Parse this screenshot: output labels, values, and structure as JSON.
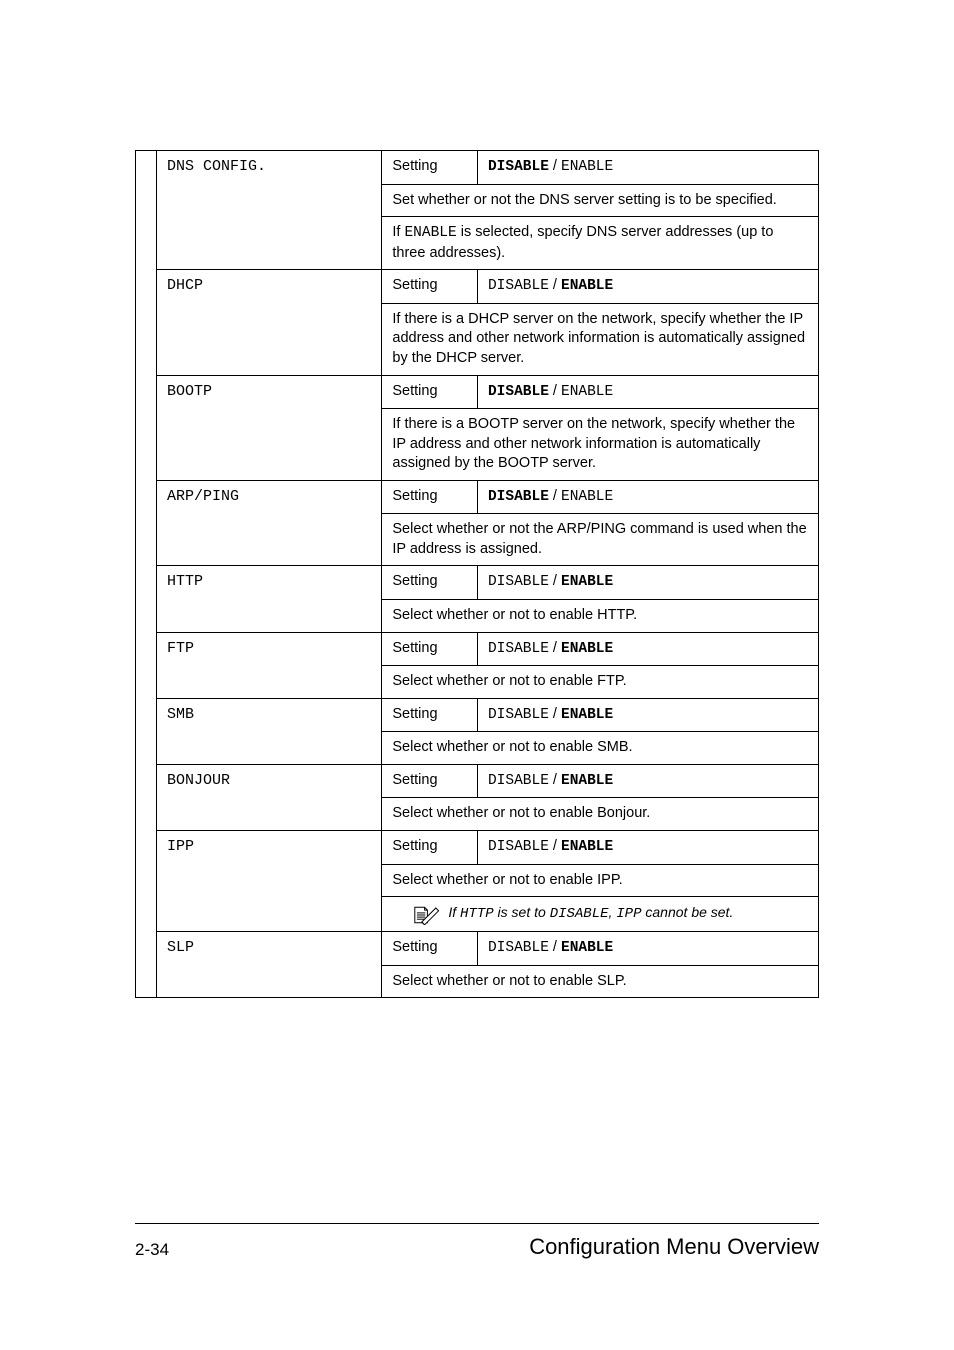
{
  "rows": [
    {
      "name": "DNS CONFIG.",
      "setting_label": "Setting",
      "value_html": "<span class='bold-mono'>DISABLE</span> / <span class='mono'>ENABLE</span>",
      "descs": [
        "Set whether or not the DNS server setting is to be specified.",
        "If <span class='mono'>ENABLE</span> is selected, specify DNS server addresses (up to three addresses)."
      ]
    },
    {
      "name": "DHCP",
      "setting_label": "Setting",
      "value_html": "<span class='mono'>DISABLE</span> / <span class='bold-mono'>ENABLE</span>",
      "descs": [
        "If there is a DHCP server on the network, specify whether the IP address and other network information is automatically assigned by the DHCP server."
      ]
    },
    {
      "name": "BOOTP",
      "setting_label": "Setting",
      "value_html": "<span class='bold-mono'>DISABLE</span> / <span class='mono'>ENABLE</span>",
      "descs": [
        "If there is a BOOTP server on the network, specify whether the IP address and other network information is automatically assigned by the BOOTP server."
      ]
    },
    {
      "name": "ARP/PING",
      "setting_label": "Setting",
      "value_html": "<span class='bold-mono'>DISABLE</span> / <span class='mono'>ENABLE</span>",
      "descs": [
        "Select whether or not the ARP/PING command is used when the IP address is assigned."
      ]
    },
    {
      "name": "HTTP",
      "setting_label": "Setting",
      "value_html": "<span class='mono'>DISABLE</span> / <span class='bold-mono'>ENABLE</span>",
      "descs": [
        "Select whether or not to enable HTTP."
      ]
    },
    {
      "name": "FTP",
      "setting_label": "Setting",
      "value_html": "<span class='mono'>DISABLE</span> / <span class='bold-mono'>ENABLE</span>",
      "descs": [
        "Select whether or not to enable FTP."
      ]
    },
    {
      "name": "SMB",
      "setting_label": "Setting",
      "value_html": "<span class='mono'>DISABLE</span> / <span class='bold-mono'>ENABLE</span>",
      "descs": [
        "Select whether or not to enable SMB."
      ]
    },
    {
      "name": "BONJOUR",
      "setting_label": "Setting",
      "value_html": "<span class='mono'>DISABLE</span> / <span class='bold-mono'>ENABLE</span>",
      "descs": [
        "Select whether or not to enable Bonjour."
      ]
    },
    {
      "name": "IPP",
      "setting_label": "Setting",
      "value_html": "<span class='mono'>DISABLE</span> / <span class='bold-mono'>ENABLE</span>",
      "descs": [
        "Select whether or not to enable IPP."
      ],
      "note": "If <span class='mono'>HTTP</span> is set to <span class='mono'>DISABLE</span>, <span class='mono'>IPP</span> cannot be set."
    },
    {
      "name": "SLP",
      "setting_label": "Setting",
      "value_html": "<span class='mono'>DISABLE</span> / <span class='bold-mono'>ENABLE</span>",
      "descs": [
        "Select whether or not to enable SLP."
      ]
    }
  ],
  "footer": {
    "page": "2-34",
    "title": "Configuration Menu Overview"
  }
}
